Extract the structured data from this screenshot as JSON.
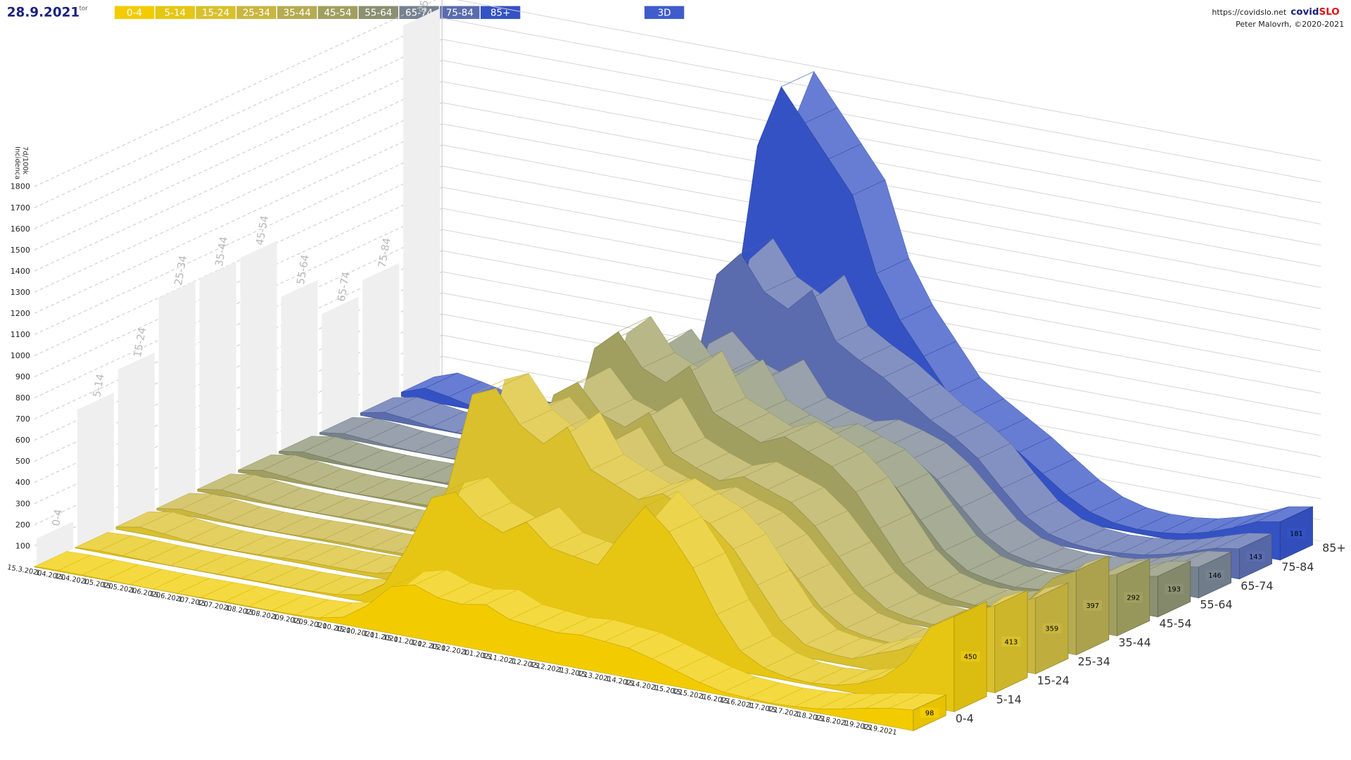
{
  "header": {
    "date": "28.9.2021",
    "weekday": "tor",
    "url": "https://covidslo.net",
    "brand": [
      "covid",
      "SLO"
    ],
    "credit": "Peter Malovrh, ©2020-2021",
    "view_button": "3D"
  },
  "chart_data": [
    {
      "type": "ribbon3d",
      "y_label": [
        "7d/100k",
        "Incidenca"
      ],
      "categories": [
        "15.3.2020",
        "1.4.2020",
        "15.4.2020",
        "1.5.2020",
        "15.5.2020",
        "1.6.2020",
        "15.6.2020",
        "1.7.2020",
        "15.7.2020",
        "1.8.2020",
        "15.8.2020",
        "1.9.2020",
        "15.9.2020",
        "1.10.2020",
        "15.10.2020",
        "1.11.2020",
        "15.11.2020",
        "1.12.2020",
        "15.12.2020",
        "1.1.2021",
        "15.1.2021",
        "1.2.2021",
        "15.2.2021",
        "1.3.2021",
        "15.3.2021",
        "1.4.2021",
        "15.4.2021",
        "1.5.2021",
        "15.5.2021",
        "1.6.2021",
        "15.6.2021",
        "1.7.2021",
        "15.7.2021",
        "1.8.2021",
        "15.8.2021",
        "1.9.2021",
        "15.9.2021",
        null
      ],
      "series": [
        {
          "name": "0-4",
          "color": "#f2cc00",
          "values": [
            2,
            5,
            4,
            2,
            1,
            0,
            1,
            2,
            3,
            2,
            3,
            4,
            10,
            35,
            110,
            220,
            250,
            210,
            200,
            220,
            170,
            160,
            150,
            160,
            150,
            140,
            110,
            75,
            40,
            15,
            8,
            5,
            10,
            20,
            40,
            65,
            85,
            98
          ]
        },
        {
          "name": "5-14",
          "color": "#e6c612",
          "values": [
            3,
            8,
            6,
            3,
            1,
            1,
            2,
            3,
            4,
            3,
            5,
            10,
            30,
            100,
            300,
            550,
            600,
            500,
            450,
            520,
            420,
            400,
            380,
            550,
            700,
            600,
            450,
            250,
            100,
            40,
            15,
            10,
            20,
            50,
            100,
            200,
            380,
            450
          ]
        },
        {
          "name": "15-24",
          "color": "#d9c02c",
          "values": [
            10,
            30,
            20,
            8,
            3,
            2,
            5,
            10,
            15,
            12,
            15,
            20,
            50,
            180,
            500,
            950,
            1000,
            850,
            780,
            880,
            700,
            650,
            600,
            650,
            600,
            550,
            450,
            300,
            150,
            60,
            40,
            35,
            80,
            120,
            180,
            260,
            360,
            413
          ]
        },
        {
          "name": "25-34",
          "color": "#c9b640",
          "values": [
            8,
            25,
            18,
            7,
            3,
            2,
            4,
            8,
            10,
            8,
            10,
            14,
            35,
            130,
            380,
            740,
            800,
            690,
            640,
            720,
            560,
            520,
            480,
            520,
            480,
            440,
            360,
            240,
            120,
            48,
            25,
            18,
            40,
            70,
            120,
            200,
            310,
            359
          ]
        },
        {
          "name": "35-44",
          "color": "#b5ab52",
          "values": [
            9,
            27,
            18,
            7,
            3,
            2,
            4,
            7,
            9,
            7,
            9,
            13,
            34,
            130,
            390,
            770,
            850,
            720,
            680,
            770,
            600,
            550,
            510,
            550,
            510,
            470,
            380,
            255,
            130,
            50,
            25,
            17,
            35,
            70,
            130,
            220,
            340,
            397
          ]
        },
        {
          "name": "45-54",
          "color": "#a09f60",
          "values": [
            10,
            30,
            20,
            8,
            3,
            2,
            5,
            8,
            10,
            8,
            10,
            15,
            40,
            150,
            450,
            900,
            1000,
            850,
            800,
            900,
            700,
            650,
            600,
            650,
            600,
            550,
            450,
            300,
            150,
            60,
            30,
            20,
            35,
            60,
            110,
            180,
            250,
            292
          ]
        },
        {
          "name": "55-64",
          "color": "#8a9070",
          "values": [
            9,
            27,
            18,
            7,
            3,
            2,
            4,
            6,
            8,
            6,
            8,
            12,
            34,
            130,
            380,
            760,
            850,
            720,
            680,
            770,
            600,
            550,
            510,
            550,
            510,
            470,
            380,
            250,
            125,
            50,
            25,
            15,
            25,
            40,
            75,
            120,
            170,
            193
          ]
        },
        {
          "name": "65-74",
          "color": "#768290",
          "values": [
            8,
            24,
            16,
            6,
            2,
            2,
            3,
            5,
            6,
            5,
            6,
            10,
            28,
            110,
            330,
            670,
            750,
            640,
            600,
            680,
            520,
            480,
            450,
            480,
            450,
            410,
            330,
            220,
            110,
            45,
            20,
            12,
            20,
            30,
            55,
            90,
            130,
            146
          ]
        },
        {
          "name": "75-84",
          "color": "#5a6cae",
          "values": [
            12,
            35,
            24,
            9,
            3,
            2,
            4,
            6,
            8,
            6,
            8,
            12,
            40,
            160,
            480,
            980,
            1100,
            940,
            880,
            990,
            770,
            700,
            640,
            560,
            480,
            420,
            340,
            220,
            110,
            45,
            20,
            12,
            18,
            30,
            55,
            90,
            125,
            143
          ]
        },
        {
          "name": "85+",
          "color": "#3452c4",
          "values": [
            20,
            60,
            40,
            15,
            5,
            3,
            5,
            8,
            10,
            8,
            10,
            15,
            60,
            250,
            700,
            1500,
            1800,
            1650,
            1500,
            1350,
            1000,
            800,
            650,
            500,
            420,
            350,
            280,
            200,
            120,
            60,
            30,
            20,
            25,
            40,
            70,
            110,
            160,
            181
          ]
        }
      ],
      "ylim": [
        0,
        1800
      ],
      "yticks": [
        100,
        200,
        300,
        400,
        500,
        600,
        700,
        800,
        900,
        1000,
        1100,
        1200,
        1300,
        1400,
        1500,
        1600,
        1700,
        1800
      ],
      "grid": true
    },
    {
      "type": "wall-bar",
      "categories": [
        "0-4",
        "5-14",
        "15-24",
        "25-34",
        "35-44",
        "45-54",
        "55-64",
        "65-74",
        "75-84",
        "85+"
      ],
      "values": [
        130,
        650,
        750,
        1000,
        1000,
        1010,
        735,
        565,
        635,
        1750
      ],
      "color": "#efefef"
    }
  ]
}
